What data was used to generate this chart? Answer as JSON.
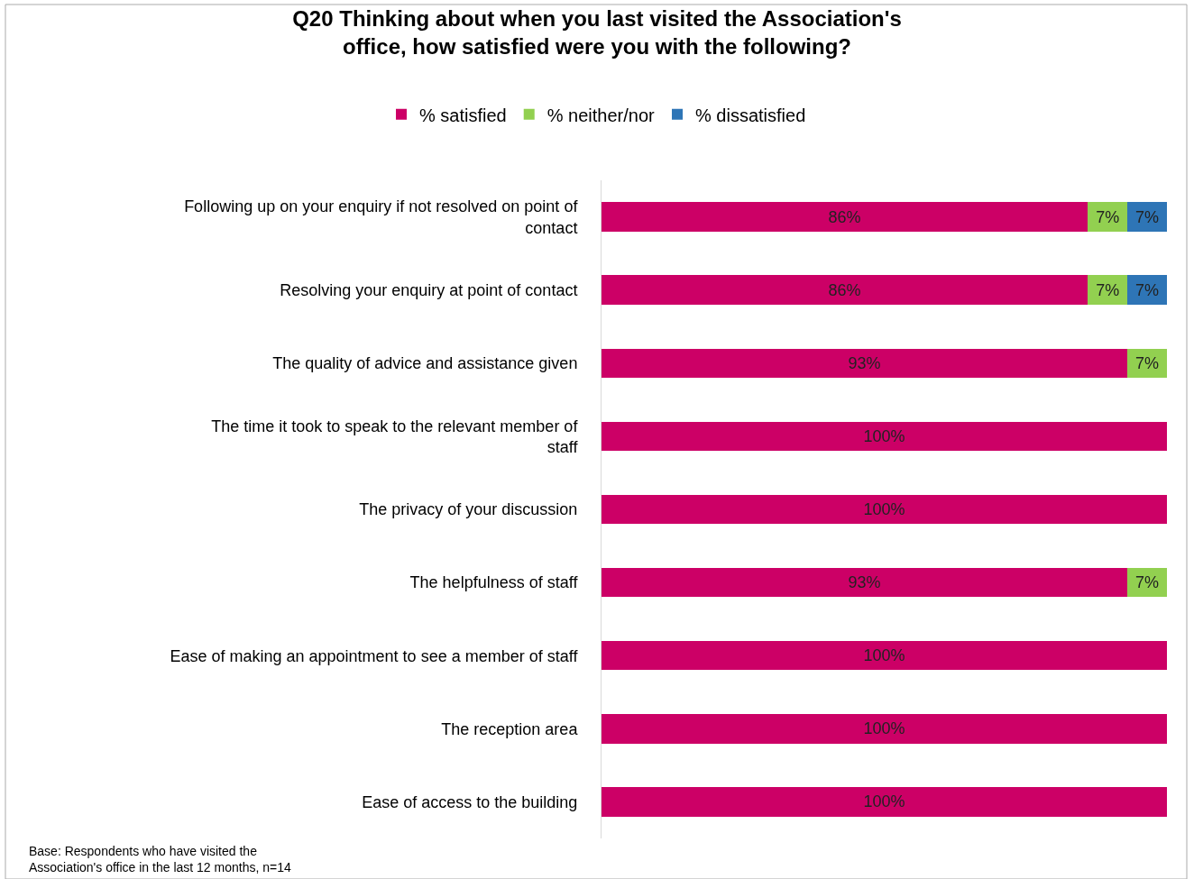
{
  "chart_data": {
    "type": "bar",
    "orientation": "horizontal",
    "stacked": true,
    "title": "Q20 Thinking about when you last visited the Association's office, how satisfied were you with the following?",
    "categories": [
      "Following up on your enquiry if not resolved on point of contact",
      "Resolving your enquiry at point of contact",
      "The quality of advice and assistance given",
      "The time it took to speak to the relevant member of staff",
      "The privacy of your discussion",
      "The helpfulness of staff",
      "Ease of making an appointment to see a member of staff",
      "The reception area",
      "Ease of access to the building"
    ],
    "series": [
      {
        "name": "% satisfied",
        "color": "#cc0066",
        "values": [
          86,
          86,
          93,
          100,
          100,
          93,
          100,
          100,
          100
        ],
        "value_labels": [
          "86%",
          "86%",
          "93%",
          "100%",
          "100%",
          "93%",
          "100%",
          "100%",
          "100%"
        ]
      },
      {
        "name": "% neither/nor",
        "color": "#92d050",
        "values": [
          7,
          7,
          7,
          null,
          null,
          7,
          null,
          null,
          null
        ],
        "value_labels": [
          "7%",
          "7%",
          "7%",
          null,
          null,
          "7%",
          null,
          null,
          null
        ]
      },
      {
        "name": "% dissatisfied",
        "color": "#2e75b6",
        "values": [
          7,
          7,
          null,
          null,
          null,
          null,
          null,
          null,
          null
        ],
        "value_labels": [
          "7%",
          "7%",
          null,
          null,
          null,
          null,
          null,
          null,
          null
        ]
      }
    ],
    "xlim": [
      0,
      100
    ],
    "tick_labels": "y",
    "legend": "top",
    "annotations": [
      "Base: Respondents who have visited the Association's office in the last 12 months, n=14"
    ]
  }
}
